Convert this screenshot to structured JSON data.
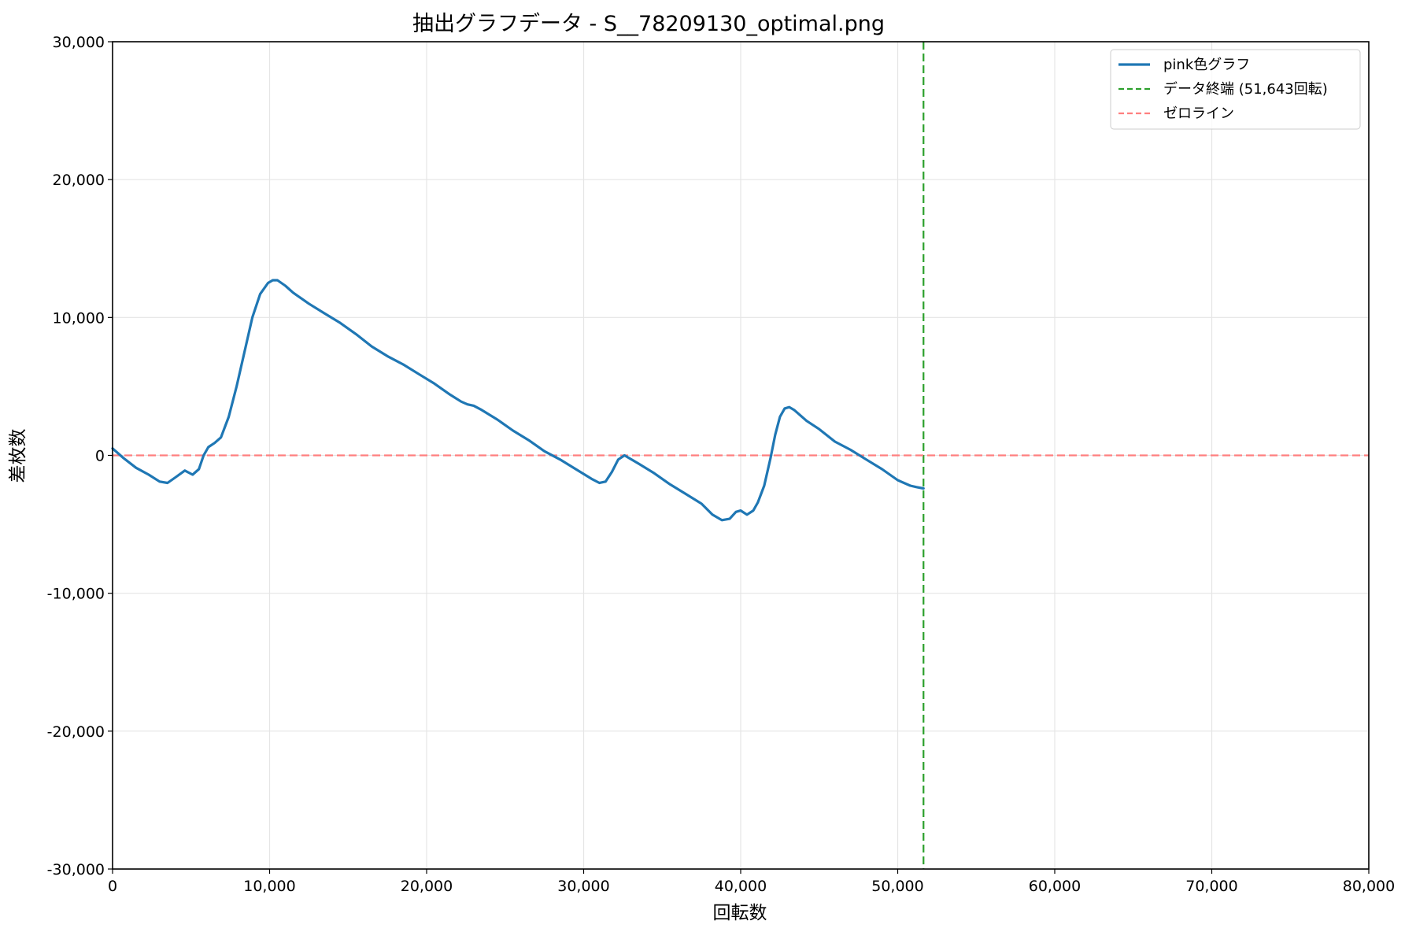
{
  "chart_data": {
    "type": "line",
    "title": "抽出グラフデータ - S__78209130_optimal.png",
    "xlabel": "回転数",
    "ylabel": "差枚数",
    "xlim": [
      0,
      80000
    ],
    "ylim": [
      -30000,
      30000
    ],
    "xticks": [
      0,
      10000,
      20000,
      30000,
      40000,
      50000,
      60000,
      70000,
      80000
    ],
    "xtick_labels": [
      "0",
      "10,000",
      "20,000",
      "30,000",
      "40,000",
      "50,000",
      "60,000",
      "70,000",
      "80,000"
    ],
    "yticks": [
      -30000,
      -20000,
      -10000,
      0,
      10000,
      20000,
      30000
    ],
    "ytick_labels": [
      "-30,000",
      "-20,000",
      "-10,000",
      "0",
      "10,000",
      "20,000",
      "30,000"
    ],
    "grid": true,
    "legend_position": "top-right",
    "series": [
      {
        "name": "pink色グラフ",
        "color": "#1f77b4",
        "style": "solid",
        "x": [
          0,
          700,
          1500,
          2300,
          3000,
          3500,
          4000,
          4600,
          5100,
          5500,
          5800,
          6100,
          6500,
          6900,
          7400,
          7900,
          8400,
          8900,
          9400,
          9900,
          10200,
          10500,
          11000,
          11500,
          12500,
          13500,
          14500,
          15500,
          16500,
          17500,
          18500,
          19500,
          20500,
          21500,
          22200,
          22600,
          23000,
          23500,
          24500,
          25500,
          26500,
          27500,
          28500,
          29500,
          30500,
          31000,
          31400,
          31800,
          32200,
          32600,
          33500,
          34500,
          35500,
          36500,
          37500,
          38200,
          38800,
          39300,
          39700,
          40000,
          40400,
          40800,
          41100,
          41500,
          41900,
          42200,
          42500,
          42800,
          43100,
          43400,
          43800,
          44200,
          45000,
          46000,
          47000,
          48000,
          49000,
          50000,
          50800,
          51200,
          51643
        ],
        "y": [
          500,
          -200,
          -900,
          -1400,
          -1900,
          -2000,
          -1600,
          -1100,
          -1400,
          -1000,
          0,
          600,
          900,
          1300,
          2800,
          5000,
          7500,
          10000,
          11700,
          12500,
          12700,
          12700,
          12300,
          11800,
          11000,
          10300,
          9600,
          8800,
          7900,
          7200,
          6600,
          5900,
          5200,
          4400,
          3900,
          3700,
          3600,
          3300,
          2600,
          1800,
          1100,
          300,
          -300,
          -1000,
          -1700,
          -2000,
          -1900,
          -1200,
          -300,
          0,
          -600,
          -1300,
          -2100,
          -2800,
          -3500,
          -4300,
          -4700,
          -4600,
          -4100,
          -4000,
          -4300,
          -4000,
          -3400,
          -2200,
          -200,
          1500,
          2800,
          3400,
          3500,
          3300,
          2900,
          2500,
          1900,
          1000,
          400,
          -300,
          -1000,
          -1800,
          -2200,
          -2300,
          -2400
        ]
      },
      {
        "name": "データ終端 (51,643回転)",
        "color": "#2ca02c",
        "style": "dashed",
        "orientation": "vertical",
        "value": 51643
      },
      {
        "name": "ゼロライン",
        "color": "#ff7f7f",
        "style": "dashed",
        "orientation": "horizontal",
        "value": 0
      }
    ]
  }
}
